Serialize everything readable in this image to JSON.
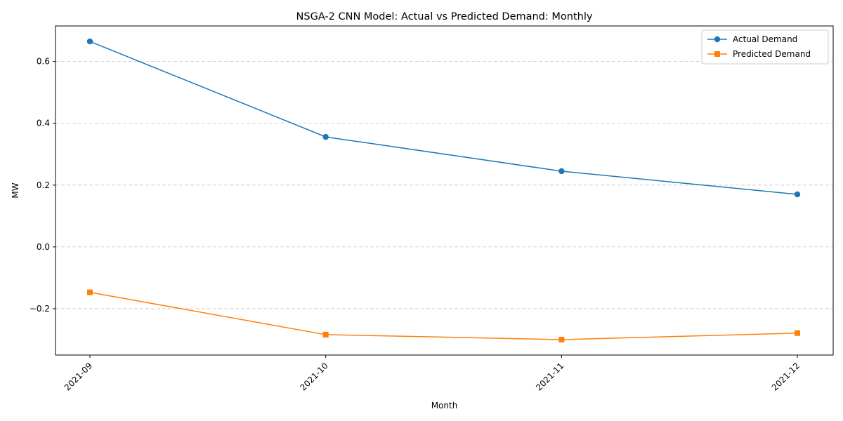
{
  "chart_data": {
    "type": "line",
    "title": "NSGA-2 CNN Model: Actual vs Predicted Demand: Monthly",
    "xlabel": "Month",
    "ylabel": "MW",
    "categories": [
      "2021-09",
      "2021-10",
      "2021-11",
      "2021-12"
    ],
    "ylim": [
      -0.35,
      0.715
    ],
    "yticks": [
      -0.2,
      0.0,
      0.2,
      0.4,
      0.6
    ],
    "ytick_labels": [
      "−0.2",
      "0.0",
      "0.2",
      "0.4",
      "0.6"
    ],
    "grid": "y-dashed",
    "legend_position": "top-right",
    "series": [
      {
        "name": "Actual Demand",
        "marker": "circle",
        "color": "#1f77b4",
        "values": [
          0.665,
          0.356,
          0.245,
          0.17
        ]
      },
      {
        "name": "Predicted Demand",
        "marker": "square",
        "color": "#ff7f0e",
        "values": [
          -0.147,
          -0.284,
          -0.3,
          -0.279
        ]
      }
    ]
  }
}
